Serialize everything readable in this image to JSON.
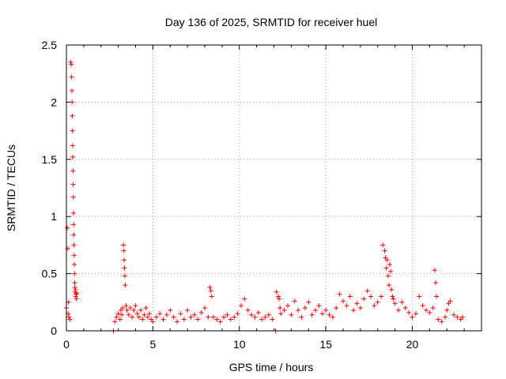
{
  "chart_data": {
    "type": "scatter",
    "title": "Day 136 of 2025, SRMTID for receiver huel",
    "xlabel": "GPS time / hours",
    "ylabel": "SRMTID / TECUs",
    "xlim": [
      0,
      24
    ],
    "ylim": [
      0,
      2.5
    ],
    "xticks": [
      0,
      5,
      10,
      15,
      20
    ],
    "xtick_labels": [
      "0",
      "5",
      "10",
      "15",
      "20"
    ],
    "yticks": [
      0,
      0.5,
      1,
      1.5,
      2,
      2.5
    ],
    "ytick_labels": [
      "0",
      "0.5",
      "1",
      "1.5",
      "2",
      "2.5"
    ],
    "grid": true,
    "marker": "+",
    "color": "#ff0000",
    "series": [
      {
        "name": "SRMTID",
        "x": [
          0.0,
          0.05,
          0.08,
          0.1,
          0.12,
          0.15,
          0.2,
          0.25,
          0.28,
          0.3,
          0.32,
          0.33,
          0.34,
          0.35,
          0.36,
          0.37,
          0.38,
          0.39,
          0.4,
          0.41,
          0.42,
          0.43,
          0.44,
          0.45,
          0.46,
          0.47,
          0.48,
          0.49,
          0.5,
          0.52,
          0.54,
          0.56,
          0.58,
          0.6,
          2.72,
          2.8,
          2.9,
          3.0,
          3.1,
          3.15,
          3.2,
          3.25,
          3.3,
          3.32,
          3.34,
          3.36,
          3.38,
          3.4,
          3.45,
          3.5,
          3.6,
          3.7,
          3.8,
          3.9,
          4.0,
          4.1,
          4.2,
          4.3,
          4.4,
          4.5,
          4.6,
          4.7,
          4.8,
          4.9,
          5.0,
          5.2,
          5.4,
          5.6,
          5.8,
          6.0,
          6.2,
          6.4,
          6.6,
          6.8,
          7.0,
          7.2,
          7.4,
          7.6,
          7.8,
          8.0,
          8.2,
          8.3,
          8.35,
          8.4,
          8.5,
          8.7,
          8.9,
          9.1,
          9.3,
          9.5,
          9.7,
          9.9,
          10.1,
          10.3,
          10.5,
          10.7,
          10.9,
          11.1,
          11.3,
          11.5,
          11.7,
          11.9,
          12.1,
          12.15,
          12.25,
          12.3,
          12.35,
          12.4,
          12.6,
          12.8,
          13.0,
          13.2,
          13.4,
          13.6,
          13.8,
          14.0,
          14.2,
          14.4,
          14.6,
          14.8,
          15.0,
          15.2,
          15.4,
          15.6,
          15.8,
          16.0,
          16.2,
          16.4,
          16.6,
          16.8,
          17.0,
          17.2,
          17.4,
          17.6,
          17.8,
          18.0,
          18.2,
          18.3,
          18.4,
          18.45,
          18.5,
          18.55,
          18.6,
          18.65,
          18.7,
          18.75,
          18.8,
          18.85,
          18.9,
          19.0,
          19.2,
          19.4,
          19.6,
          19.8,
          20.0,
          20.2,
          20.4,
          20.6,
          20.8,
          21.0,
          21.2,
          21.3,
          21.35,
          21.4,
          21.5,
          21.7,
          21.9,
          22.0,
          22.1,
          22.2,
          22.4,
          22.6,
          22.8,
          22.9
        ],
        "y": [
          0.2,
          0.9,
          0.72,
          0.15,
          0.25,
          0.12,
          0.1,
          2.35,
          2.33,
          2.22,
          2.1,
          2.0,
          1.88,
          1.75,
          1.62,
          1.52,
          1.4,
          1.28,
          1.17,
          1.03,
          0.93,
          0.84,
          0.75,
          0.66,
          0.58,
          0.5,
          0.42,
          0.38,
          0.34,
          0.36,
          0.3,
          0.32,
          0.28,
          0.33,
          0.0,
          0.08,
          0.12,
          0.15,
          0.1,
          0.18,
          0.14,
          0.2,
          0.75,
          0.7,
          0.62,
          0.55,
          0.48,
          0.4,
          0.22,
          0.18,
          0.14,
          0.2,
          0.12,
          0.18,
          0.22,
          0.15,
          0.12,
          0.18,
          0.1,
          0.14,
          0.2,
          0.12,
          0.15,
          0.1,
          0.08,
          0.12,
          0.15,
          0.1,
          0.14,
          0.18,
          0.12,
          0.08,
          0.15,
          0.1,
          0.18,
          0.12,
          0.14,
          0.1,
          0.16,
          0.2,
          0.12,
          0.38,
          0.35,
          0.3,
          0.12,
          0.1,
          0.08,
          0.12,
          0.14,
          0.1,
          0.12,
          0.15,
          0.22,
          0.28,
          0.18,
          0.14,
          0.12,
          0.16,
          0.1,
          0.12,
          0.14,
          0.1,
          0.0,
          0.34,
          0.3,
          0.28,
          0.2,
          0.15,
          0.18,
          0.22,
          0.14,
          0.26,
          0.18,
          0.12,
          0.2,
          0.25,
          0.14,
          0.18,
          0.22,
          0.15,
          0.18,
          0.14,
          0.12,
          0.2,
          0.32,
          0.26,
          0.22,
          0.3,
          0.18,
          0.24,
          0.2,
          0.28,
          0.35,
          0.3,
          0.22,
          0.25,
          0.3,
          0.75,
          0.7,
          0.64,
          0.55,
          0.62,
          0.48,
          0.4,
          0.58,
          0.52,
          0.36,
          0.3,
          0.28,
          0.24,
          0.18,
          0.25,
          0.2,
          0.16,
          0.12,
          0.15,
          0.3,
          0.22,
          0.18,
          0.16,
          0.2,
          0.53,
          0.42,
          0.3,
          0.1,
          0.08,
          0.12,
          0.18,
          0.24,
          0.26,
          0.14,
          0.12,
          0.1,
          0.12
        ]
      }
    ]
  }
}
